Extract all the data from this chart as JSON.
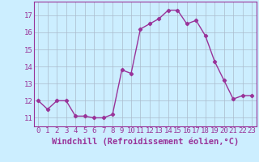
{
  "x": [
    0,
    1,
    2,
    3,
    4,
    5,
    6,
    7,
    8,
    9,
    10,
    11,
    12,
    13,
    14,
    15,
    16,
    17,
    18,
    19,
    20,
    21,
    22,
    23
  ],
  "y": [
    12.0,
    11.5,
    12.0,
    12.0,
    11.1,
    11.1,
    11.0,
    11.0,
    11.2,
    13.8,
    13.6,
    16.2,
    16.5,
    16.8,
    17.3,
    17.3,
    16.5,
    16.7,
    15.8,
    14.3,
    13.2,
    12.1,
    12.3,
    12.3
  ],
  "line_color": "#993399",
  "marker": "D",
  "marker_size": 2.2,
  "bg_color": "#cceeff",
  "grid_color": "#aabbcc",
  "xlabel": "Windchill (Refroidissement éolien,°C)",
  "xlabel_color": "#993399",
  "xlabel_fontsize": 7.5,
  "ylabel_ticks": [
    11,
    12,
    13,
    14,
    15,
    16,
    17
  ],
  "xlim": [
    -0.5,
    23.5
  ],
  "ylim": [
    10.5,
    17.8
  ],
  "tick_color": "#993399",
  "tick_fontsize": 6.5,
  "spine_color": "#993399",
  "line_width": 1.0
}
